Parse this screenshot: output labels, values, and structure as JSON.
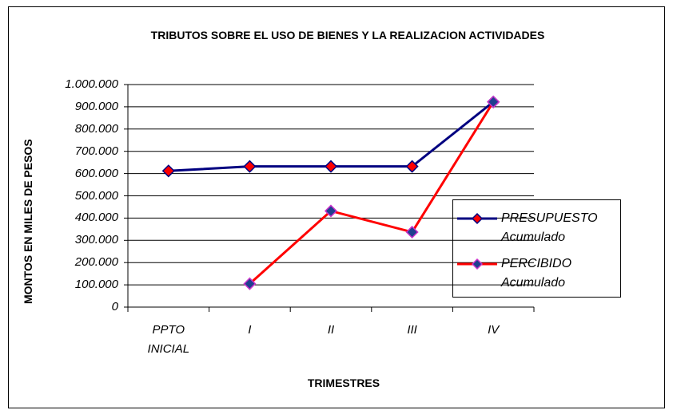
{
  "chart_data": {
    "type": "line",
    "title": "TRIBUTOS SOBRE EL USO DE BIENES Y LA REALIZACION ACTIVIDADES",
    "x_label": "TRIMESTRES",
    "y_label": "MONTOS EN MILES DE PESOS",
    "categories": [
      "PPTO INICIAL",
      "I",
      "II",
      "III",
      "IV"
    ],
    "series": [
      {
        "name": "PRESUPUESTO Acumulado",
        "color": "#000080",
        "marker_color": "#ff0000",
        "values": [
          612000,
          632000,
          632000,
          632000,
          922000
        ]
      },
      {
        "name": "PERCIBIDO Acumulado",
        "color": "#ff0000",
        "marker_color": "#1f3f8f",
        "values": [
          null,
          105000,
          432000,
          337000,
          922000
        ]
      }
    ],
    "ylim": [
      0,
      1000000
    ],
    "yticks": [
      0,
      {
        "value": 100000,
        "label": "100.000"
      },
      {
        "value": 200000,
        "label": "200.000"
      },
      {
        "value": 300000,
        "label": "300.000"
      },
      {
        "value": 400000,
        "label": "400.000"
      },
      {
        "value": 500000,
        "label": "500.000"
      },
      {
        "value": 600000,
        "label": "600.000"
      },
      {
        "value": 700000,
        "label": "700.000"
      },
      {
        "value": 800000,
        "label": "800.000"
      },
      {
        "value": 900000,
        "label": "900.000"
      },
      {
        "value": 1000000,
        "label": "1.000.000"
      }
    ],
    "grid": true,
    "legend": "right"
  }
}
